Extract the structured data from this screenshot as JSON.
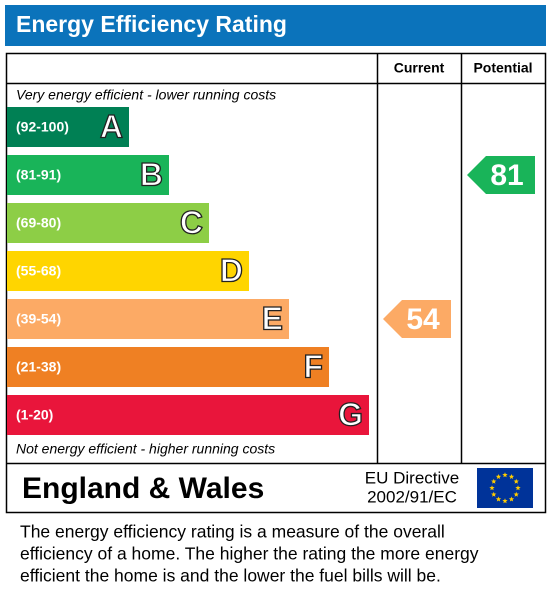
{
  "header": {
    "title": "Energy Efficiency Rating"
  },
  "columns": [
    "Current",
    "Potential"
  ],
  "top_note": "Very energy efficient - lower running costs",
  "bottom_note": "Not energy efficient - higher running costs",
  "bands": [
    {
      "range": "(92-100)",
      "letter": "A",
      "color": "#008054"
    },
    {
      "range": "(81-91)",
      "letter": "B",
      "color": "#19b459"
    },
    {
      "range": "(69-80)",
      "letter": "C",
      "color": "#8dce46"
    },
    {
      "range": "(55-68)",
      "letter": "D",
      "color": "#ffd500"
    },
    {
      "range": "(39-54)",
      "letter": "E",
      "color": "#fcaa65"
    },
    {
      "range": "(21-38)",
      "letter": "F",
      "color": "#ef8023"
    },
    {
      "range": "(1-20)",
      "letter": "G",
      "color": "#e9153b"
    }
  ],
  "ratings": {
    "current": 54,
    "potential": 81
  },
  "footer": {
    "region": "England & Wales",
    "directive": [
      "EU Directive",
      "2002/91/EC"
    ]
  },
  "description": [
    "The energy efficiency rating is a measure of the overall",
    "efficiency of a home.  The higher the rating the more energy",
    "efficient the home is and the lower the fuel bills will be."
  ]
}
